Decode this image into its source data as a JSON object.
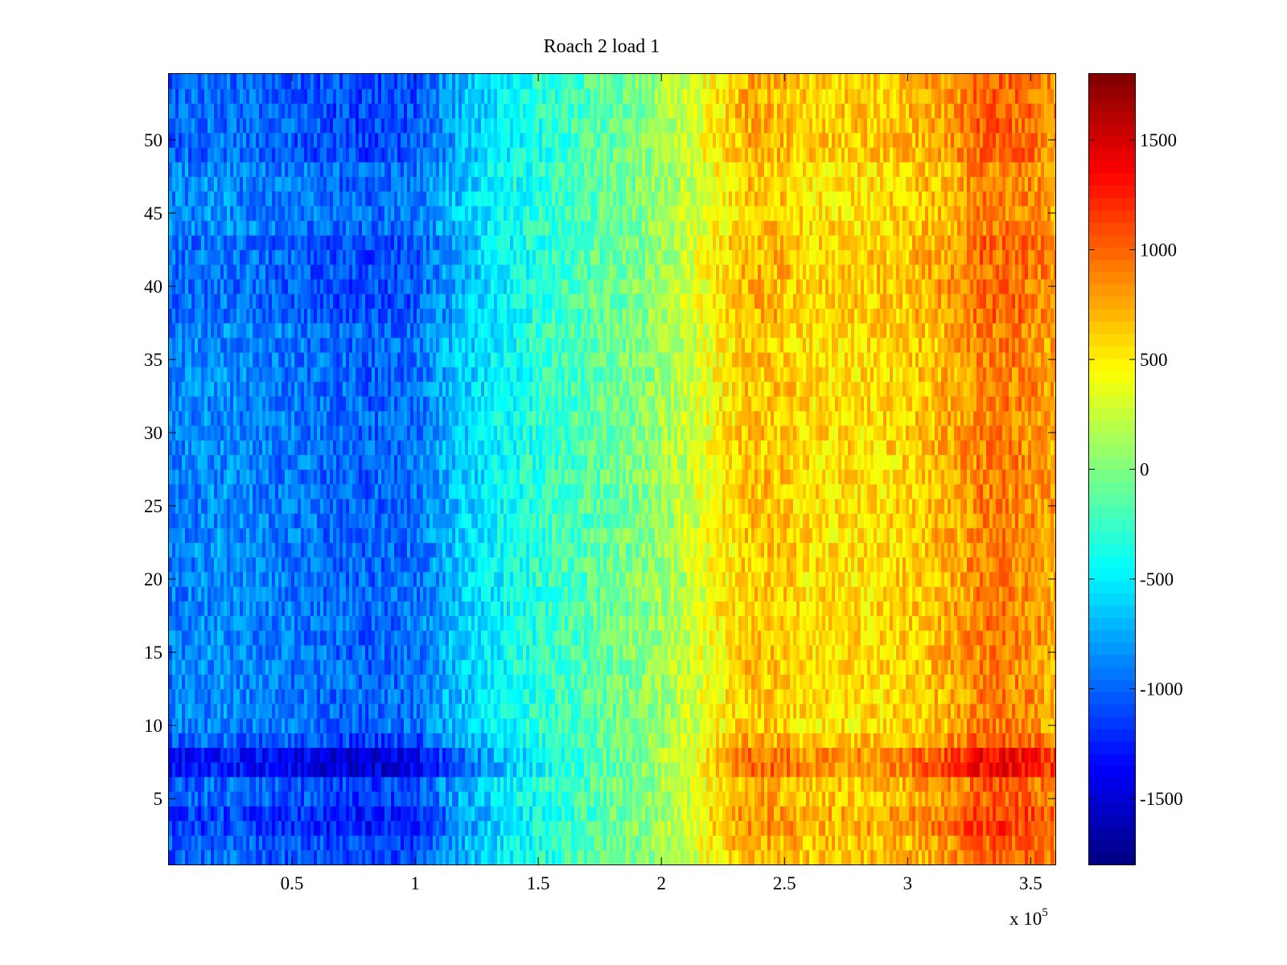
{
  "chart_data": {
    "type": "heatmap",
    "title": "Roach 2 load 1",
    "xlabel": "",
    "ylabel": "",
    "x_multiplier_label": "x 10",
    "x_multiplier_exponent": "5",
    "xlim": [
      0,
      3.6
    ],
    "ylim": [
      0.5,
      54.5
    ],
    "x_ticks": [
      0.5,
      1,
      1.5,
      2,
      2.5,
      3,
      3.5
    ],
    "x_tick_labels": [
      "0.5",
      "1",
      "1.5",
      "2",
      "2.5",
      "3",
      "3.5"
    ],
    "y_ticks": [
      5,
      10,
      15,
      20,
      25,
      30,
      35,
      40,
      45,
      50
    ],
    "y_tick_labels": [
      "5",
      "10",
      "15",
      "20",
      "25",
      "30",
      "35",
      "40",
      "45",
      "50"
    ],
    "rows": 54,
    "colorbar": {
      "colormap": "jet",
      "clim": [
        -1800,
        1800
      ],
      "ticks": [
        -1500,
        -1000,
        -500,
        0,
        500,
        1000,
        1500
      ],
      "tick_labels": [
        "-1500",
        "-1000",
        "-500",
        "0",
        "500",
        "1000",
        "1500"
      ]
    },
    "column_profile": {
      "x": [
        0,
        0.2,
        0.4,
        0.6,
        0.8,
        1.0,
        1.15,
        1.3,
        1.5,
        1.7,
        1.9,
        2.05,
        2.2,
        2.35,
        2.45,
        2.6,
        2.8,
        3.0,
        3.2,
        3.3,
        3.4,
        3.5,
        3.6
      ],
      "value": [
        -900,
        -850,
        -900,
        -950,
        -1000,
        -950,
        -700,
        -500,
        -300,
        -150,
        0,
        150,
        400,
        650,
        650,
        550,
        550,
        600,
        750,
        900,
        900,
        850,
        750
      ]
    },
    "row_offsets": [
      {
        "rows": [
          1,
          2
        ],
        "delta": 150
      },
      {
        "rows": [
          3,
          4
        ],
        "delta": 300
      },
      {
        "rows": [
          5,
          6
        ],
        "delta": 150
      },
      {
        "rows": [
          7,
          8
        ],
        "delta": 500
      },
      {
        "rows": [
          9
        ],
        "delta": 150
      },
      {
        "rows": [
          38,
          39,
          40,
          41,
          42,
          43
        ],
        "delta": 100
      },
      {
        "rows": [
          49,
          50,
          51,
          52,
          53,
          54
        ],
        "delta": 120
      }
    ],
    "noise_amplitude": 230,
    "grid": false,
    "legend": "none"
  }
}
